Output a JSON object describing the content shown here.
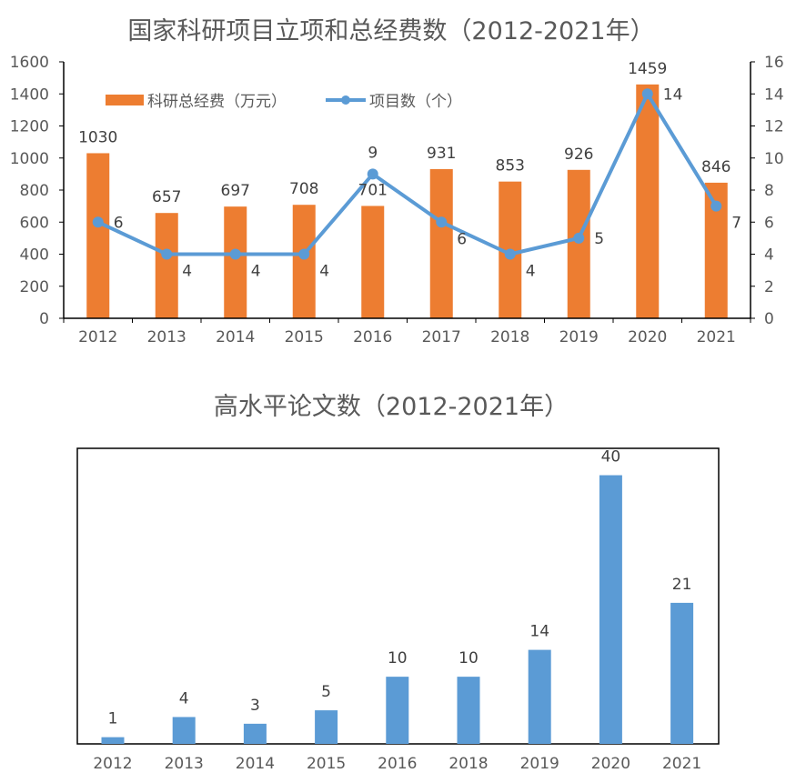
{
  "chart_data": [
    {
      "type": "bar+line",
      "title": "国家科研项目立项和总经费数（2012-2021年）",
      "categories": [
        "2012",
        "2013",
        "2014",
        "2015",
        "2016",
        "2017",
        "2018",
        "2019",
        "2020",
        "2021"
      ],
      "series": [
        {
          "name": "科研总经费（万元）",
          "type": "bar",
          "axis": "left",
          "color": "#ED7D31",
          "values": [
            1030,
            657,
            697,
            708,
            701,
            931,
            853,
            926,
            1459,
            846
          ]
        },
        {
          "name": "项目数（个）",
          "type": "line",
          "axis": "right",
          "color": "#5B9BD5",
          "values": [
            6,
            4,
            4,
            4,
            9,
            6,
            4,
            5,
            14,
            7
          ]
        }
      ],
      "y_left": {
        "min": 0,
        "max": 1600,
        "ticks": [
          "0",
          "200",
          "400",
          "600",
          "800",
          "1000",
          "1200",
          "1400",
          "1600"
        ]
      },
      "y_right": {
        "min": 0,
        "max": 16,
        "ticks": [
          "0",
          "2",
          "4",
          "6",
          "8",
          "10",
          "12",
          "14",
          "16"
        ]
      },
      "legend_position": "top-left",
      "grid": false
    },
    {
      "type": "bar",
      "title": "高水平论文数（2012-2021年）",
      "categories": [
        "2012",
        "2013",
        "2014",
        "2015",
        "2016",
        "2018",
        "2019",
        "2020",
        "2021"
      ],
      "values": [
        1,
        4,
        3,
        5,
        10,
        10,
        14,
        40,
        21
      ],
      "color": "#5B9BD5",
      "y_range": [
        0,
        44
      ],
      "grid": false
    }
  ]
}
